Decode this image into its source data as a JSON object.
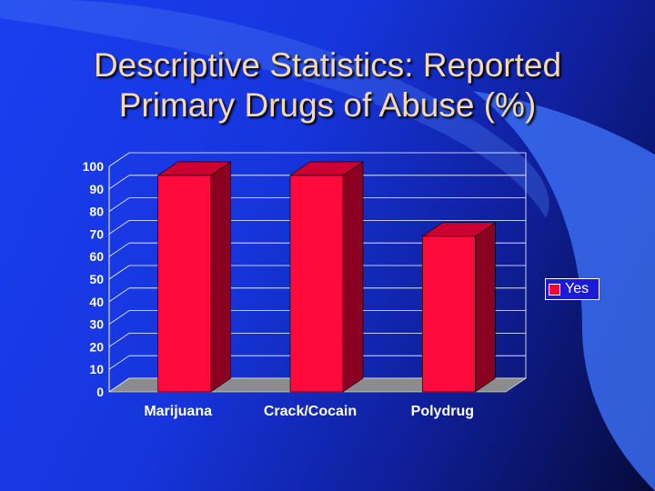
{
  "slide": {
    "title_line1": "Descriptive Statistics: Reported",
    "title_line2": "Primary Drugs of Abuse (%)"
  },
  "colors": {
    "bar_front": "#ff0a3a",
    "bar_side": "#8a0020",
    "bar_top": "#cc0030",
    "floor": "#8c8c8c",
    "text": "#ffffff",
    "title": "#f7d9b0"
  },
  "chart_data": {
    "type": "bar",
    "title": "Descriptive Statistics: Reported Primary Drugs of Abuse (%)",
    "categories": [
      "Marijuana",
      "Crack/Cocain",
      "Polydrug"
    ],
    "series": [
      {
        "name": "Yes",
        "values": [
          96,
          96,
          69
        ]
      }
    ],
    "ylim": [
      0,
      100
    ],
    "yticks": [
      0,
      10,
      20,
      30,
      40,
      50,
      60,
      70,
      80,
      90,
      100
    ],
    "legend": {
      "position": "right",
      "label": "Yes"
    },
    "grid": true,
    "xlabel": "",
    "ylabel": ""
  }
}
